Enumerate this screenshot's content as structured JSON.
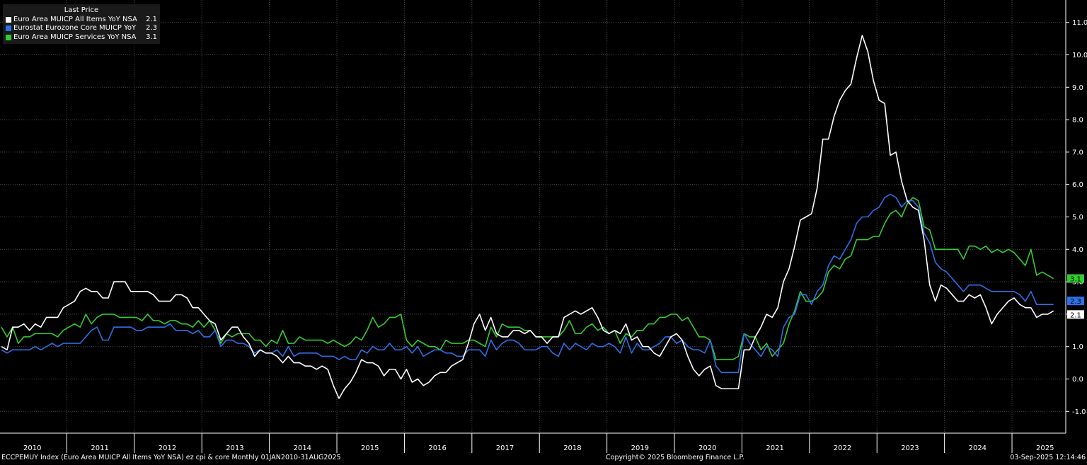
{
  "legend": {
    "header": "Last Price",
    "items": [
      {
        "name": "Euro Area MUICP All Items YoY NSA",
        "value": "2.1",
        "color": "#ffffff"
      },
      {
        "name": "Eurostat Eurozone Core MUICP YoY NSA",
        "value": "2.3",
        "color": "#2f6fe8"
      },
      {
        "name": "Euro Area MUICP Services YoY NSA",
        "value": "3.1",
        "color": "#33cc33"
      }
    ]
  },
  "footer": {
    "left": "ECCPEMUY Index (Euro Area MUICP All Items YoY NSA) ez cpi & core  Monthly 01JAN2010-31AUG2025",
    "center": "Copyright© 2025 Bloomberg Finance L.P.",
    "right": "03-Sep-2025 12:14:46"
  },
  "chart_data": {
    "type": "line",
    "start": "2010-01",
    "frequency": "monthly",
    "x_tick_labels": [
      "2010",
      "2011",
      "2012",
      "2013",
      "2014",
      "2015",
      "2016",
      "2017",
      "2018",
      "2019",
      "2020",
      "2021",
      "2022",
      "2023",
      "2024",
      "2025"
    ],
    "y_ticks": [
      -1.0,
      0.0,
      1.0,
      2.0,
      3.0,
      4.0,
      5.0,
      6.0,
      7.0,
      8.0,
      9.0,
      10.0,
      11.0
    ],
    "y_tick_labels": [
      "-1.0",
      "0.0",
      "1.0",
      "2.0",
      "3.0",
      "4.0",
      "5.0",
      "6.0",
      "7.0",
      "8.0",
      "9.0",
      "10.0",
      "11.0"
    ],
    "ylim": [
      -1.6,
      11.6
    ],
    "grid": true,
    "legend_position": "top-left",
    "last_value_labels": [
      "3.1",
      "2.3",
      "2.1"
    ],
    "series": [
      {
        "name": "Euro Area MUICP All Items YoY NSA",
        "color": "#ffffff",
        "values": [
          1.0,
          0.9,
          1.6,
          1.6,
          1.7,
          1.5,
          1.7,
          1.6,
          1.9,
          1.9,
          1.9,
          2.2,
          2.3,
          2.4,
          2.7,
          2.8,
          2.7,
          2.7,
          2.5,
          2.5,
          3.0,
          3.0,
          3.0,
          2.7,
          2.7,
          2.7,
          2.7,
          2.6,
          2.4,
          2.4,
          2.4,
          2.6,
          2.6,
          2.5,
          2.2,
          2.2,
          2.0,
          1.8,
          1.7,
          1.2,
          1.4,
          1.6,
          1.6,
          1.3,
          1.1,
          0.7,
          0.9,
          0.8,
          0.8,
          0.7,
          0.5,
          0.7,
          0.5,
          0.5,
          0.4,
          0.4,
          0.3,
          0.4,
          0.3,
          -0.2,
          -0.6,
          -0.3,
          -0.1,
          0.2,
          0.6,
          0.5,
          0.5,
          0.4,
          0.1,
          0.3,
          0.3,
          0.0,
          0.3,
          -0.1,
          0.0,
          -0.2,
          -0.1,
          0.1,
          0.2,
          0.2,
          0.4,
          0.5,
          0.6,
          1.1,
          1.7,
          2.0,
          1.5,
          1.9,
          1.4,
          1.3,
          1.3,
          1.5,
          1.5,
          1.4,
          1.5,
          1.3,
          1.3,
          1.1,
          1.3,
          1.3,
          1.9,
          2.0,
          2.1,
          2.0,
          2.1,
          2.2,
          1.9,
          1.5,
          1.4,
          1.5,
          1.4,
          1.7,
          1.2,
          1.3,
          1.0,
          1.0,
          0.8,
          0.7,
          1.0,
          1.3,
          1.4,
          1.2,
          0.7,
          0.3,
          0.1,
          0.3,
          0.4,
          -0.2,
          -0.3,
          -0.3,
          -0.3,
          -0.3,
          0.9,
          0.9,
          1.3,
          1.6,
          2.0,
          1.9,
          2.2,
          3.0,
          3.4,
          4.1,
          4.9,
          5.0,
          5.1,
          5.9,
          7.4,
          7.4,
          8.1,
          8.6,
          8.9,
          9.1,
          9.9,
          10.6,
          10.1,
          9.2,
          8.6,
          8.5,
          6.9,
          7.0,
          6.1,
          5.5,
          5.3,
          5.2,
          4.3,
          2.9,
          2.4,
          2.9,
          2.8,
          2.6,
          2.4,
          2.4,
          2.6,
          2.5,
          2.6,
          2.2,
          1.7,
          2.0,
          2.2,
          2.4,
          2.5,
          2.3,
          2.2,
          2.2,
          1.9,
          2.0,
          2.0,
          2.1
        ]
      },
      {
        "name": "Eurostat Eurozone Core MUICP YoY NSA",
        "color": "#2f6fe8",
        "values": [
          0.9,
          0.8,
          0.9,
          0.9,
          0.9,
          0.9,
          1.0,
          0.9,
          1.0,
          1.1,
          1.0,
          1.1,
          1.1,
          1.1,
          1.1,
          1.3,
          1.5,
          1.6,
          1.2,
          1.2,
          1.6,
          1.6,
          1.6,
          1.6,
          1.5,
          1.5,
          1.6,
          1.6,
          1.6,
          1.6,
          1.7,
          1.5,
          1.5,
          1.5,
          1.4,
          1.5,
          1.3,
          1.3,
          1.5,
          1.0,
          1.2,
          1.2,
          1.1,
          1.1,
          1.0,
          0.8,
          0.9,
          0.8,
          0.8,
          0.9,
          0.7,
          1.0,
          0.7,
          0.8,
          0.8,
          0.8,
          0.8,
          0.7,
          0.7,
          0.7,
          0.6,
          0.7,
          0.6,
          0.6,
          0.9,
          0.8,
          1.0,
          0.9,
          0.9,
          1.1,
          0.9,
          0.9,
          1.0,
          0.8,
          1.0,
          0.7,
          0.8,
          0.9,
          0.9,
          0.8,
          0.8,
          0.7,
          0.7,
          0.9,
          0.9,
          0.9,
          0.7,
          1.2,
          0.9,
          1.1,
          1.2,
          1.2,
          1.1,
          0.9,
          0.9,
          0.9,
          1.0,
          1.0,
          0.8,
          0.7,
          1.1,
          0.9,
          1.1,
          1.0,
          0.9,
          1.1,
          1.0,
          1.0,
          1.1,
          1.0,
          0.8,
          1.3,
          0.8,
          1.1,
          0.9,
          0.9,
          1.0,
          1.1,
          1.3,
          1.3,
          1.1,
          1.2,
          1.0,
          0.9,
          0.9,
          0.8,
          1.2,
          0.4,
          0.2,
          0.2,
          0.2,
          0.2,
          1.4,
          1.1,
          0.9,
          0.7,
          1.0,
          0.9,
          0.7,
          1.6,
          1.9,
          2.0,
          2.6,
          2.6,
          2.3,
          2.7,
          2.9,
          3.5,
          3.8,
          3.7,
          4.0,
          4.3,
          4.8,
          5.0,
          5.0,
          5.2,
          5.3,
          5.6,
          5.7,
          5.6,
          5.3,
          5.5,
          5.5,
          5.3,
          4.5,
          4.2,
          3.6,
          3.4,
          3.3,
          3.1,
          2.9,
          2.7,
          2.9,
          2.9,
          2.9,
          2.8,
          2.7,
          2.7,
          2.7,
          2.7,
          2.7,
          2.6,
          2.4,
          2.7,
          2.3,
          2.3,
          2.3,
          2.3
        ]
      },
      {
        "name": "Euro Area MUICP Services YoY NSA",
        "color": "#33cc33",
        "values": [
          1.6,
          1.3,
          1.6,
          1.1,
          1.3,
          1.3,
          1.4,
          1.4,
          1.4,
          1.4,
          1.3,
          1.5,
          1.6,
          1.7,
          1.6,
          2.0,
          1.7,
          1.9,
          2.0,
          2.0,
          2.0,
          1.9,
          1.9,
          1.9,
          1.9,
          1.8,
          2.0,
          1.8,
          1.8,
          1.7,
          1.8,
          1.8,
          1.7,
          1.7,
          1.6,
          1.8,
          1.6,
          1.8,
          1.5,
          1.1,
          1.4,
          1.3,
          1.4,
          1.4,
          1.4,
          1.2,
          1.2,
          1.0,
          1.2,
          1.1,
          1.5,
          1.1,
          1.1,
          1.3,
          1.2,
          1.2,
          1.2,
          1.2,
          1.1,
          1.2,
          1.1,
          1.0,
          1.1,
          1.3,
          1.2,
          1.5,
          1.9,
          1.6,
          1.7,
          1.9,
          1.9,
          2.0,
          1.2,
          1.0,
          1.2,
          1.1,
          1.0,
          1.0,
          0.9,
          1.2,
          1.1,
          1.1,
          1.1,
          1.2,
          1.2,
          1.1,
          1.0,
          1.6,
          1.3,
          1.7,
          1.6,
          1.6,
          1.6,
          1.5,
          1.5,
          1.3,
          1.3,
          1.3,
          1.3,
          1.3,
          1.5,
          1.8,
          1.4,
          1.4,
          1.6,
          1.7,
          1.5,
          1.6,
          1.4,
          1.5,
          1.1,
          1.4,
          1.3,
          1.5,
          1.5,
          1.7,
          1.7,
          1.9,
          1.9,
          2.0,
          2.0,
          1.8,
          1.9,
          1.6,
          1.3,
          1.3,
          1.2,
          0.6,
          0.6,
          0.6,
          0.6,
          0.7,
          1.4,
          1.3,
          1.3,
          0.9,
          1.1,
          0.7,
          0.9,
          1.1,
          1.7,
          2.1,
          2.7,
          2.4,
          2.4,
          2.5,
          2.7,
          3.3,
          3.5,
          3.4,
          3.7,
          3.8,
          4.3,
          4.3,
          4.3,
          4.4,
          4.4,
          4.8,
          5.1,
          5.2,
          5.0,
          5.4,
          5.6,
          5.5,
          4.7,
          4.6,
          4.0,
          4.0,
          4.0,
          4.0,
          4.0,
          3.7,
          4.1,
          4.1,
          4.0,
          4.1,
          3.9,
          4.0,
          3.9,
          4.0,
          3.9,
          3.7,
          3.5,
          4.0,
          3.2,
          3.3,
          3.2,
          3.1
        ]
      }
    ]
  }
}
